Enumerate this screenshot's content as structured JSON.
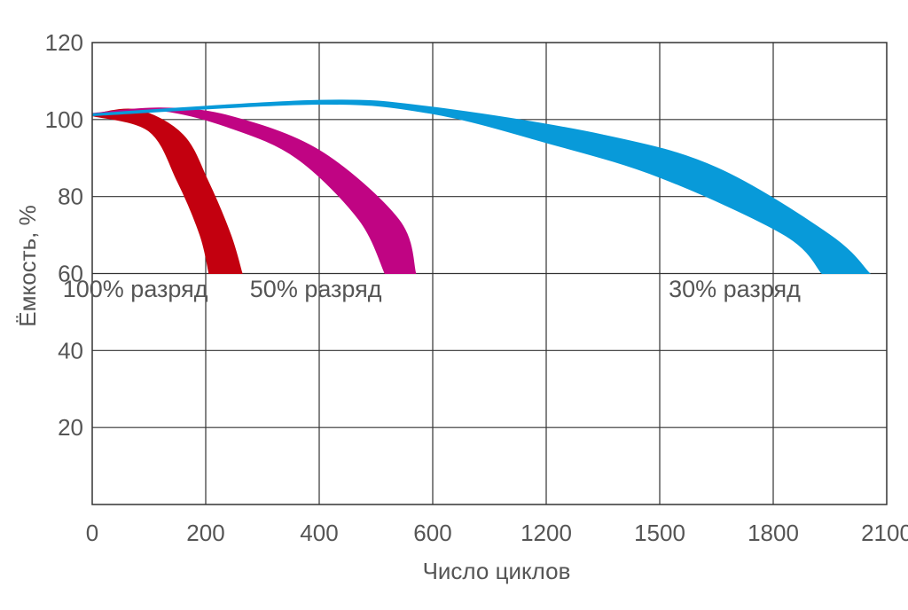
{
  "chart_data": {
    "type": "area",
    "title": "",
    "xlabel": "Число циклов",
    "ylabel": "Ёмкость, %",
    "x_tick_labels": [
      "0",
      "200",
      "400",
      "600",
      "1200",
      "1500",
      "1800",
      "2100"
    ],
    "y_tick_labels": [
      "20",
      "40",
      "60",
      "80",
      "100",
      "120"
    ],
    "y_ticks": [
      20,
      40,
      60,
      80,
      100,
      120
    ],
    "ylim": [
      0,
      120
    ],
    "x_positions": [
      0,
      1,
      2,
      3,
      4,
      5,
      6,
      7
    ],
    "grid": true,
    "series": [
      {
        "name": "100% разряд",
        "color": "#c3000f",
        "upper": [
          [
            0.0,
            101.3
          ],
          [
            0.4,
            102.5
          ],
          [
            0.8,
            96
          ],
          [
            1.02,
            84
          ],
          [
            1.22,
            70
          ],
          [
            1.32,
            60
          ]
        ],
        "lower": [
          [
            1.03,
            60
          ],
          [
            0.95,
            70
          ],
          [
            0.75,
            84
          ],
          [
            0.5,
            97
          ],
          [
            0.0,
            101.0
          ]
        ],
        "label_x": 0.38,
        "label_y": 56
      },
      {
        "name": "50% разряд",
        "color": "#c00483",
        "upper": [
          [
            0.0,
            101.6
          ],
          [
            0.6,
            103.0
          ],
          [
            1.2,
            101
          ],
          [
            2.0,
            92
          ],
          [
            2.7,
            74
          ],
          [
            2.85,
            60
          ]
        ],
        "lower": [
          [
            2.58,
            60
          ],
          [
            2.35,
            74
          ],
          [
            1.8,
            90
          ],
          [
            1.2,
            98
          ],
          [
            0.6,
            102.3
          ],
          [
            0.0,
            101.2
          ]
        ],
        "label_x": 1.97,
        "label_y": 56
      },
      {
        "name": "30% разряд",
        "color": "#089ad9",
        "upper": [
          [
            0.0,
            101.5
          ],
          [
            2.0,
            105.0
          ],
          [
            3.0,
            103.2
          ],
          [
            4.5,
            96
          ],
          [
            5.5,
            87.5
          ],
          [
            6.5,
            70
          ],
          [
            6.85,
            60
          ]
        ],
        "lower": [
          [
            6.43,
            60
          ],
          [
            6.1,
            70
          ],
          [
            5.0,
            85
          ],
          [
            4.0,
            94
          ],
          [
            3.0,
            101.5
          ],
          [
            2.0,
            104.0
          ],
          [
            0.0,
            101.0
          ]
        ],
        "label_x": 5.66,
        "label_y": 56
      }
    ]
  }
}
